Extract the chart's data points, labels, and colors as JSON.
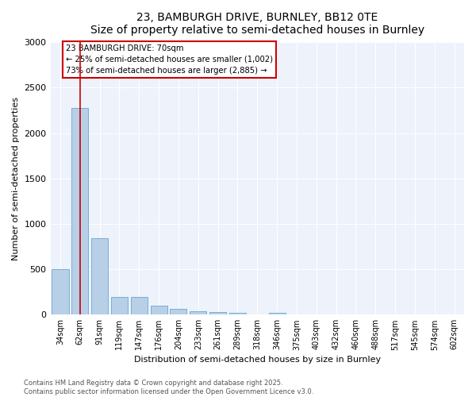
{
  "title1": "23, BAMBURGH DRIVE, BURNLEY, BB12 0TE",
  "title2": "Size of property relative to semi-detached houses in Burnley",
  "xlabel": "Distribution of semi-detached houses by size in Burnley",
  "ylabel": "Number of semi-detached properties",
  "categories": [
    "34sqm",
    "62sqm",
    "91sqm",
    "119sqm",
    "147sqm",
    "176sqm",
    "204sqm",
    "233sqm",
    "261sqm",
    "289sqm",
    "318sqm",
    "346sqm",
    "375sqm",
    "403sqm",
    "432sqm",
    "460sqm",
    "488sqm",
    "517sqm",
    "545sqm",
    "574sqm",
    "602sqm"
  ],
  "values": [
    500,
    2280,
    840,
    195,
    195,
    100,
    65,
    42,
    28,
    18,
    0,
    18,
    0,
    0,
    0,
    0,
    0,
    0,
    0,
    0,
    0
  ],
  "bar_color": "#b8cfe8",
  "bar_edge_color": "#7aaed4",
  "vline_x_index": 1,
  "vline_color": "#cc0000",
  "annotation_box_color": "#cc0000",
  "annotation_line1": "23 BAMBURGH DRIVE: 70sqm",
  "annotation_line2": "← 25% of semi-detached houses are smaller (1,002)",
  "annotation_line3": "73% of semi-detached houses are larger (2,885) →",
  "ylim": [
    0,
    3000
  ],
  "yticks": [
    0,
    500,
    1000,
    1500,
    2000,
    2500,
    3000
  ],
  "footer1": "Contains HM Land Registry data © Crown copyright and database right 2025.",
  "footer2": "Contains public sector information licensed under the Open Government Licence v3.0.",
  "background_color": "#edf2fb",
  "grid_color": "#ffffff",
  "title_fontsize": 10,
  "xlabel_fontsize": 8,
  "ylabel_fontsize": 8,
  "tick_fontsize": 7,
  "footer_fontsize": 6
}
